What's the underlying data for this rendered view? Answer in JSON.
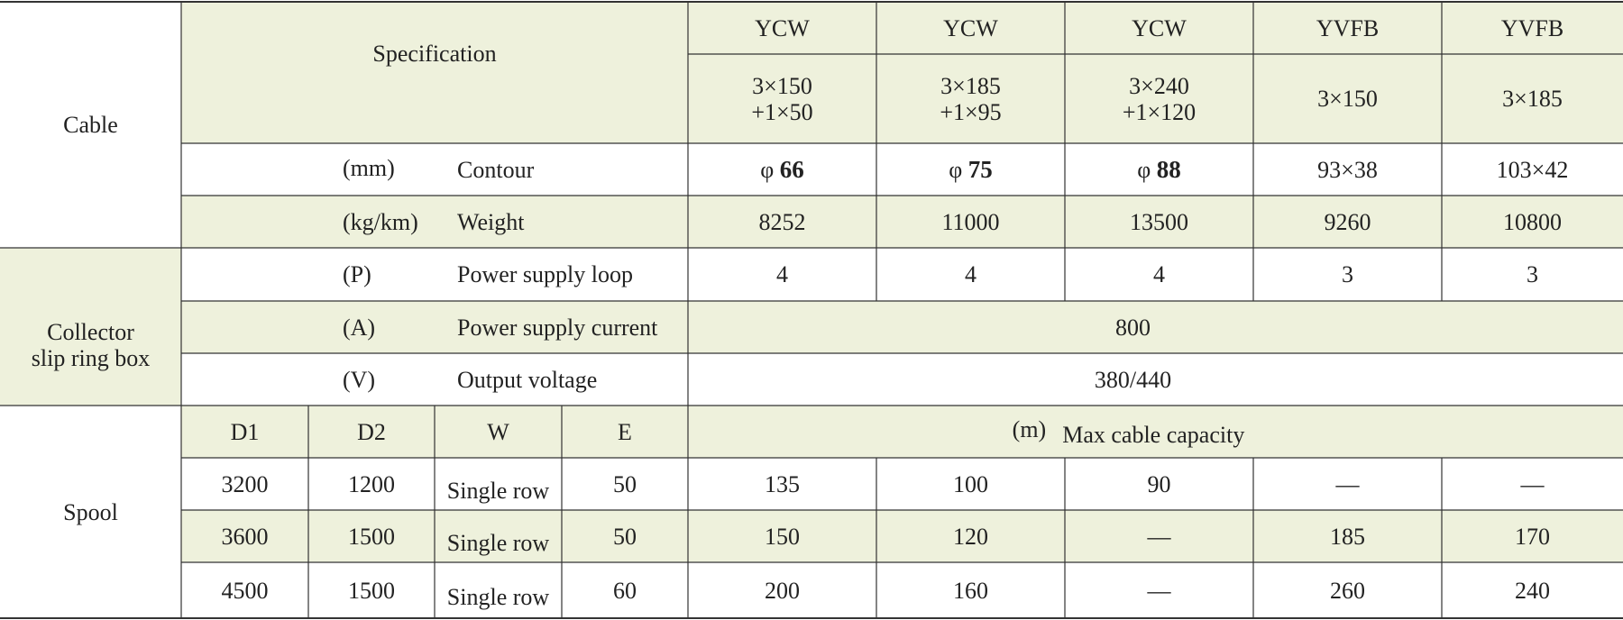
{
  "colors": {
    "shade": "#eef1dc",
    "line": "#333333",
    "text": "#222222"
  },
  "sections": {
    "cable": "Cable",
    "collector_line1": "Collector",
    "collector_line2": "slip ring box",
    "spool": "Spool"
  },
  "spec_label": "Specification",
  "models": [
    "YCW",
    "YCW",
    "YCW",
    "YVFB",
    "YVFB"
  ],
  "spec_values": [
    {
      "line1": "3×150",
      "line2": "+1×50"
    },
    {
      "line1": "3×185",
      "line2": "+1×95"
    },
    {
      "line1": "3×240",
      "line2": "+1×120"
    },
    {
      "line1": "3×150",
      "line2": ""
    },
    {
      "line1": "3×185",
      "line2": ""
    }
  ],
  "contour": {
    "unit": "(mm)",
    "label": "Contour",
    "phi_symbol": "φ",
    "values": [
      {
        "prefix": "φ",
        "value": "66"
      },
      {
        "prefix": "φ",
        "value": "75"
      },
      {
        "prefix": "φ",
        "value": "88"
      },
      {
        "prefix": "",
        "value": "93×38"
      },
      {
        "prefix": "",
        "value": "103×42"
      }
    ]
  },
  "weight": {
    "unit": "(kg/km)",
    "label": "Weight",
    "values": [
      "8252",
      "11000",
      "13500",
      "9260",
      "10800"
    ]
  },
  "power_loop": {
    "unit": "(P)",
    "label": "Power supply loop",
    "values": [
      "4",
      "4",
      "4",
      "3",
      "3"
    ]
  },
  "power_current": {
    "unit": "(A)",
    "label": "Power supply current",
    "value": "800"
  },
  "output_voltage": {
    "unit": "(V)",
    "label": "Output voltage",
    "value": "380/440"
  },
  "spool_header": {
    "d1": "D1",
    "d2": "D2",
    "w": "W",
    "e": "E",
    "capacity_unit": "(m)",
    "capacity_label": "Max cable capacity"
  },
  "spool_rows": [
    {
      "d1": "3200",
      "d2": "1200",
      "w": "Single row",
      "e": "50",
      "caps": [
        "135",
        "100",
        "90",
        "—",
        "—"
      ]
    },
    {
      "d1": "3600",
      "d2": "1500",
      "w": "Single row",
      "e": "50",
      "caps": [
        "150",
        "120",
        "—",
        "185",
        "170"
      ]
    },
    {
      "d1": "4500",
      "d2": "1500",
      "w": "Single row",
      "e": "60",
      "caps": [
        "200",
        "160",
        "—",
        "260",
        "240"
      ]
    }
  ]
}
